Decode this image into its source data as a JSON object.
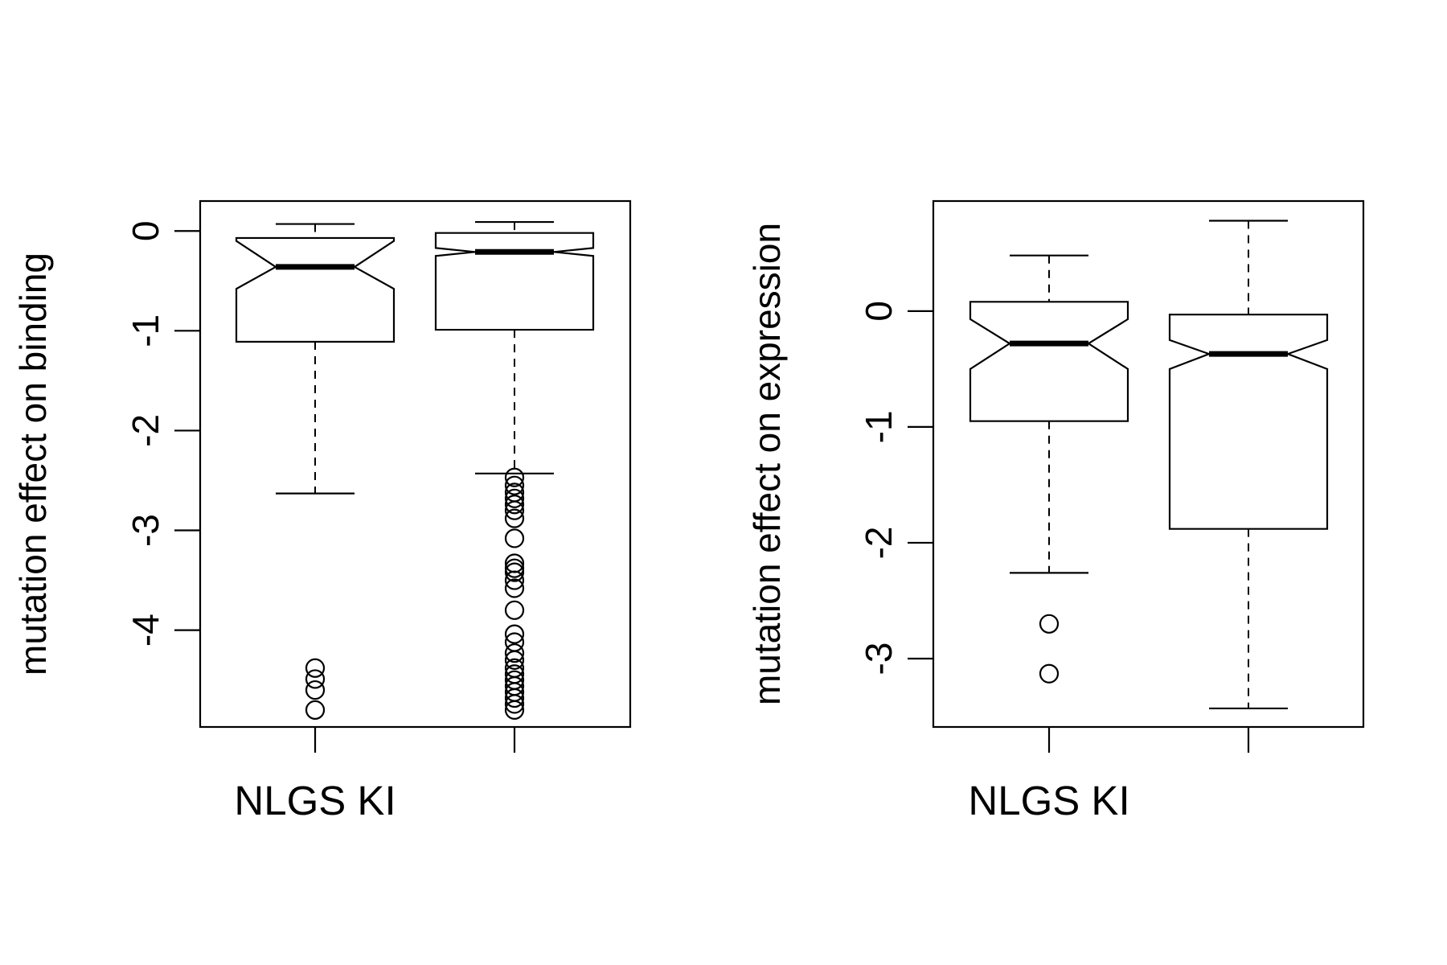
{
  "chart_data": [
    {
      "type": "boxplot",
      "title": "",
      "ylabel": "mutation effect on binding",
      "xlabel": "",
      "xtick_labels": [
        "NLGS KI",
        ""
      ],
      "ylim": [
        -4.97,
        0.3
      ],
      "yticks": [
        0,
        -1,
        -2,
        -3,
        -4
      ],
      "grid": false,
      "notched": true,
      "boxes": [
        {
          "label": "NLGS KI",
          "whisker_low": -2.63,
          "q1": -1.11,
          "median": -0.36,
          "q3": -0.07,
          "whisker_high": 0.07,
          "notch_low": -0.58,
          "notch_high": -0.1,
          "outliers": [
            -4.38,
            -4.49,
            -4.6,
            -4.8
          ]
        },
        {
          "label": "",
          "whisker_low": -2.43,
          "q1": -0.99,
          "median": -0.21,
          "q3": -0.02,
          "whisker_high": 0.09,
          "notch_low": -0.25,
          "notch_high": -0.17,
          "outliers": [
            -2.47,
            -2.55,
            -2.62,
            -2.68,
            -2.74,
            -2.8,
            -2.88,
            -3.08,
            -3.33,
            -3.38,
            -3.42,
            -3.5,
            -3.58,
            -3.8,
            -4.04,
            -4.12,
            -4.23,
            -4.3,
            -4.38,
            -4.44,
            -4.5,
            -4.56,
            -4.62,
            -4.68,
            -4.74,
            -4.8
          ]
        }
      ]
    },
    {
      "type": "boxplot",
      "title": "",
      "ylabel": "mutation effect on expression",
      "xlabel": "",
      "xtick_labels": [
        "NLGS KI",
        ""
      ],
      "ylim": [
        -3.59,
        0.95
      ],
      "yticks": [
        0,
        -1,
        -2,
        -3
      ],
      "grid": false,
      "notched": true,
      "boxes": [
        {
          "label": "NLGS KI",
          "whisker_low": -2.26,
          "q1": -0.95,
          "median": -0.28,
          "q3": 0.08,
          "whisker_high": 0.48,
          "notch_low": -0.5,
          "notch_high": -0.07,
          "outliers": [
            -2.7,
            -3.13
          ]
        },
        {
          "label": "",
          "whisker_low": -3.43,
          "q1": -1.88,
          "median": -0.37,
          "q3": -0.03,
          "whisker_high": 0.78,
          "notch_low": -0.5,
          "notch_high": -0.25,
          "outliers": []
        }
      ]
    }
  ]
}
